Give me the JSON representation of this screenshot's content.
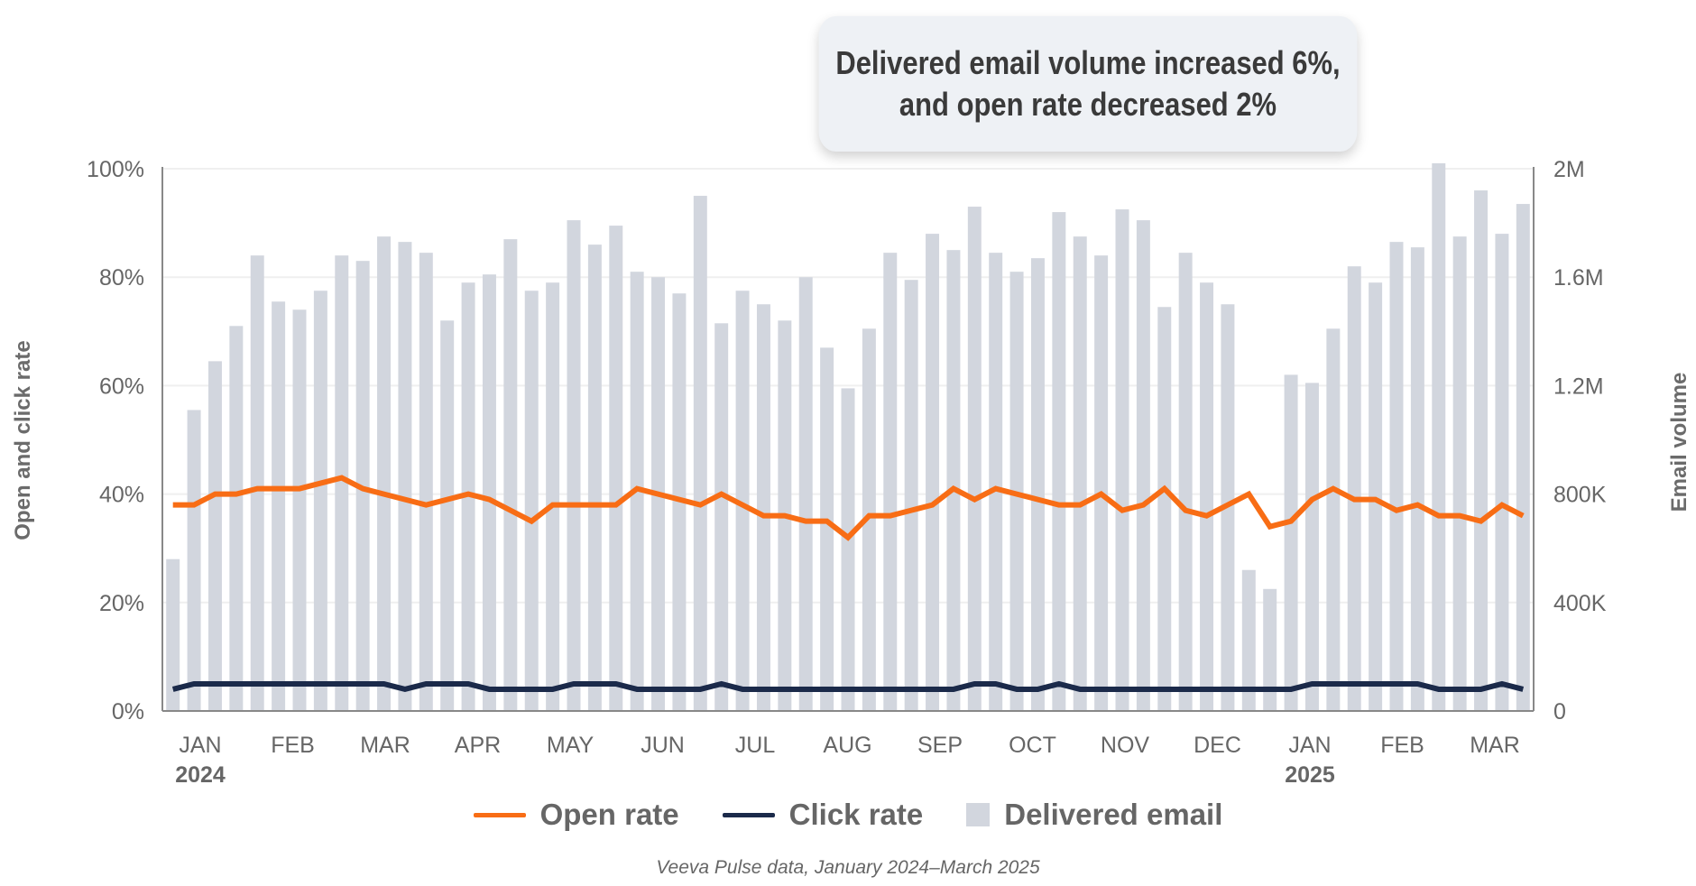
{
  "callout": {
    "line1": "Delivered email volume increased 6%,",
    "line2": "and open rate decreased 2%"
  },
  "source": "Veeva Pulse data, January 2024–March 2025",
  "colors": {
    "open": "#f86d15",
    "click": "#1b2a4a",
    "bar": "#d2d6de",
    "grid": "#efefef",
    "axis": "#888888",
    "text": "#666666"
  },
  "chart_data": {
    "type": "bar+line",
    "title": "Delivered email volume increased 6%, and open rate decreased 2%",
    "ylabel": "Open and click rate",
    "y2label": "Email volume",
    "ylim": [
      0,
      100
    ],
    "y2lim": [
      0,
      2000000
    ],
    "yticks": [
      "0%",
      "20%",
      "40%",
      "60%",
      "80%",
      "100%"
    ],
    "y2ticks": [
      "0",
      "400K",
      "800K",
      "1.2M",
      "1.6M",
      "2M"
    ],
    "month_labels": [
      "JAN",
      "FEB",
      "MAR",
      "APR",
      "MAY",
      "JUN",
      "JUL",
      "AUG",
      "SEP",
      "OCT",
      "NOV",
      "DEC",
      "JAN",
      "FEB",
      "MAR"
    ],
    "year_labels": [
      {
        "month_index": 0,
        "label": "2024"
      },
      {
        "month_index": 12,
        "label": "2025"
      }
    ],
    "legend": [
      "Open rate",
      "Click rate",
      "Delivered email"
    ],
    "legend_position": "bottom",
    "grid": true,
    "series": [
      {
        "name": "Delivered email",
        "type": "bar",
        "axis": "right",
        "values": [
          560000,
          1110000,
          1290000,
          1420000,
          1680000,
          1510000,
          1480000,
          1550000,
          1680000,
          1660000,
          1750000,
          1730000,
          1690000,
          1440000,
          1580000,
          1610000,
          1740000,
          1550000,
          1580000,
          1810000,
          1720000,
          1790000,
          1620000,
          1600000,
          1540000,
          1900000,
          1430000,
          1550000,
          1500000,
          1440000,
          1600000,
          1340000,
          1190000,
          1410000,
          1690000,
          1590000,
          1760000,
          1700000,
          1860000,
          1690000,
          1620000,
          1670000,
          1840000,
          1750000,
          1680000,
          1850000,
          1810000,
          1490000,
          1690000,
          1580000,
          1500000,
          520000,
          450000,
          1240000,
          1210000,
          1410000,
          1640000,
          1580000,
          1730000,
          1710000,
          2020000,
          1750000,
          1920000,
          1760000,
          1870000
        ]
      },
      {
        "name": "Open rate",
        "type": "line",
        "axis": "left",
        "values": [
          38,
          38,
          40,
          40,
          41,
          41,
          41,
          42,
          43,
          41,
          40,
          39,
          38,
          39,
          40,
          39,
          37,
          35,
          38,
          38,
          38,
          38,
          41,
          40,
          39,
          38,
          40,
          38,
          36,
          36,
          35,
          35,
          32,
          36,
          36,
          37,
          38,
          41,
          39,
          41,
          40,
          39,
          38,
          38,
          40,
          37,
          38,
          41,
          37,
          36,
          38,
          40,
          34,
          35,
          39,
          41,
          39,
          39,
          37,
          38,
          36,
          36,
          35,
          38,
          36
        ]
      },
      {
        "name": "Click rate",
        "type": "line",
        "axis": "left",
        "values": [
          4,
          5,
          5,
          5,
          5,
          5,
          5,
          5,
          5,
          5,
          5,
          4,
          5,
          5,
          5,
          4,
          4,
          4,
          4,
          5,
          5,
          5,
          4,
          4,
          4,
          4,
          5,
          4,
          4,
          4,
          4,
          4,
          4,
          4,
          4,
          4,
          4,
          4,
          5,
          5,
          4,
          4,
          5,
          4,
          4,
          4,
          4,
          4,
          4,
          4,
          4,
          4,
          4,
          4,
          5,
          5,
          5,
          5,
          5,
          5,
          4,
          4,
          4,
          5,
          4
        ]
      }
    ]
  }
}
